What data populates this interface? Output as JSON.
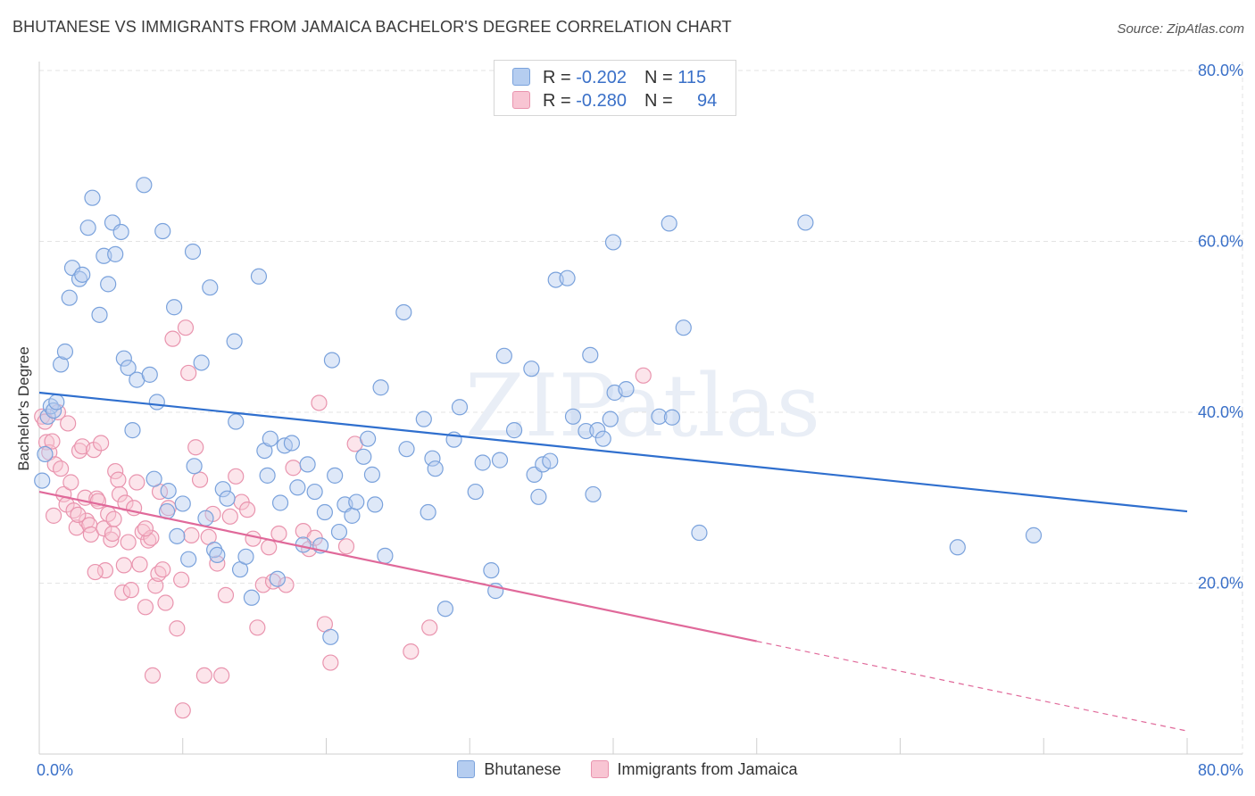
{
  "header": {
    "title": "BHUTANESE VS IMMIGRANTS FROM JAMAICA BACHELOR'S DEGREE CORRELATION CHART",
    "source": "Source: ZipAtlas.com"
  },
  "legend_top": {
    "row1": {
      "r_label": "R = ",
      "r_value": "-0.202",
      "n_label": "N = ",
      "n_value": "115"
    },
    "row2": {
      "r_label": "R = ",
      "r_value": "-0.280",
      "n_label": "N = ",
      "n_value": "94"
    }
  },
  "legend_bottom": {
    "item1": "Bhutanese",
    "item2": "Immigrants from Jamaica"
  },
  "colors": {
    "blue_fill": "#b5cdf0",
    "blue_stroke": "#7aa2dc",
    "blue_line": "#2f6fce",
    "pink_fill": "#f8c5d3",
    "pink_stroke": "#e994ae",
    "pink_line": "#e0699a",
    "tick_label": "#3a70c8",
    "grid": "#e3e3e3"
  },
  "chart_data": {
    "type": "scatter",
    "title": "BHUTANESE VS IMMIGRANTS FROM JAMAICA BACHELOR'S DEGREE CORRELATION CHART",
    "xlabel": "",
    "ylabel": "Bachelor's Degree",
    "xlim": [
      0,
      80
    ],
    "ylim": [
      0,
      80
    ],
    "x_ticks": [
      "0.0%",
      "80.0%"
    ],
    "y_ticks": [
      {
        "v": 20,
        "label": "20.0%"
      },
      {
        "v": 40,
        "label": "40.0%"
      },
      {
        "v": 60,
        "label": "60.0%"
      },
      {
        "v": 80,
        "label": "80.0%"
      }
    ],
    "grid": true,
    "legend": "top-center",
    "watermark": "ZIPatlas",
    "series": [
      {
        "name": "Bhutanese",
        "r": -0.202,
        "n": 115,
        "trend": {
          "x0": 0,
          "y0": 42.3,
          "x1": 80,
          "y1": 28.4
        },
        "points": [
          [
            0.2,
            32.0
          ],
          [
            0.4,
            35.1
          ],
          [
            0.6,
            39.5
          ],
          [
            0.8,
            40.7
          ],
          [
            1.0,
            40.2
          ],
          [
            1.2,
            41.2
          ],
          [
            1.5,
            45.6
          ],
          [
            1.8,
            47.1
          ],
          [
            2.1,
            53.4
          ],
          [
            2.3,
            56.9
          ],
          [
            2.8,
            55.6
          ],
          [
            3.0,
            56.1
          ],
          [
            3.7,
            65.1
          ],
          [
            3.4,
            61.6
          ],
          [
            4.2,
            51.4
          ],
          [
            4.5,
            58.3
          ],
          [
            4.8,
            55.0
          ],
          [
            5.1,
            62.2
          ],
          [
            5.3,
            58.5
          ],
          [
            5.7,
            61.1
          ],
          [
            5.9,
            46.3
          ],
          [
            6.2,
            45.2
          ],
          [
            6.5,
            37.9
          ],
          [
            6.8,
            43.8
          ],
          [
            7.3,
            66.6
          ],
          [
            7.7,
            44.4
          ],
          [
            8.0,
            32.2
          ],
          [
            8.2,
            41.2
          ],
          [
            8.6,
            61.2
          ],
          [
            8.9,
            28.4
          ],
          [
            9.0,
            30.8
          ],
          [
            9.4,
            52.3
          ],
          [
            9.6,
            25.5
          ],
          [
            10.0,
            29.3
          ],
          [
            10.4,
            22.8
          ],
          [
            10.7,
            58.8
          ],
          [
            10.8,
            33.7
          ],
          [
            11.3,
            45.8
          ],
          [
            11.6,
            27.6
          ],
          [
            11.9,
            54.6
          ],
          [
            12.2,
            23.9
          ],
          [
            12.4,
            23.3
          ],
          [
            12.8,
            31.0
          ],
          [
            13.1,
            29.9
          ],
          [
            13.6,
            48.3
          ],
          [
            13.7,
            38.9
          ],
          [
            14.0,
            21.6
          ],
          [
            14.4,
            23.1
          ],
          [
            14.8,
            18.3
          ],
          [
            15.3,
            55.9
          ],
          [
            15.7,
            35.5
          ],
          [
            15.9,
            32.6
          ],
          [
            16.1,
            36.9
          ],
          [
            16.6,
            20.5
          ],
          [
            16.8,
            29.4
          ],
          [
            17.1,
            36.1
          ],
          [
            17.6,
            36.4
          ],
          [
            18.0,
            31.2
          ],
          [
            18.4,
            24.5
          ],
          [
            18.7,
            33.9
          ],
          [
            19.2,
            30.7
          ],
          [
            19.6,
            24.4
          ],
          [
            19.9,
            28.3
          ],
          [
            20.4,
            46.1
          ],
          [
            20.6,
            32.6
          ],
          [
            20.9,
            26.0
          ],
          [
            21.3,
            29.2
          ],
          [
            21.8,
            27.9
          ],
          [
            22.1,
            29.5
          ],
          [
            22.6,
            34.8
          ],
          [
            22.9,
            36.9
          ],
          [
            23.2,
            32.7
          ],
          [
            23.4,
            29.2
          ],
          [
            23.8,
            42.9
          ],
          [
            24.1,
            23.2
          ],
          [
            25.4,
            51.7
          ],
          [
            25.6,
            35.7
          ],
          [
            26.8,
            39.2
          ],
          [
            27.1,
            28.3
          ],
          [
            27.4,
            34.6
          ],
          [
            27.6,
            33.4
          ],
          [
            28.9,
            36.8
          ],
          [
            29.3,
            40.6
          ],
          [
            30.4,
            30.7
          ],
          [
            30.9,
            34.1
          ],
          [
            31.5,
            21.5
          ],
          [
            31.8,
            19.1
          ],
          [
            32.1,
            34.4
          ],
          [
            32.4,
            46.6
          ],
          [
            33.1,
            37.9
          ],
          [
            34.3,
            45.1
          ],
          [
            34.5,
            32.7
          ],
          [
            34.8,
            30.1
          ],
          [
            35.1,
            33.9
          ],
          [
            35.6,
            34.3
          ],
          [
            36.0,
            55.5
          ],
          [
            36.8,
            55.7
          ],
          [
            37.2,
            39.5
          ],
          [
            38.1,
            37.8
          ],
          [
            38.4,
            46.7
          ],
          [
            38.6,
            30.4
          ],
          [
            38.9,
            37.9
          ],
          [
            39.3,
            36.9
          ],
          [
            39.8,
            39.2
          ],
          [
            40.1,
            42.3
          ],
          [
            40.0,
            59.9
          ],
          [
            40.9,
            42.7
          ],
          [
            43.2,
            39.5
          ],
          [
            43.9,
            62.1
          ],
          [
            44.1,
            39.4
          ],
          [
            44.9,
            49.9
          ],
          [
            46.0,
            25.9
          ],
          [
            53.4,
            62.2
          ],
          [
            64.0,
            24.2
          ],
          [
            69.3,
            25.6
          ],
          [
            20.3,
            13.7
          ],
          [
            28.3,
            17.0
          ]
        ]
      },
      {
        "name": "Immigrants from Jamaica",
        "r": -0.28,
        "n": 94,
        "trend": {
          "x0": 0,
          "y0": 30.7,
          "x1": 50.0,
          "y1": 13.2
        },
        "trend_dashed": {
          "x0": 50.0,
          "y0": 13.2,
          "x1": 80,
          "y1": 2.7
        },
        "points": [
          [
            0.2,
            39.5
          ],
          [
            0.4,
            38.9
          ],
          [
            0.5,
            36.5
          ],
          [
            0.7,
            35.3
          ],
          [
            0.9,
            36.6
          ],
          [
            1.1,
            33.9
          ],
          [
            1.3,
            40.0
          ],
          [
            1.5,
            33.4
          ],
          [
            1.7,
            30.4
          ],
          [
            1.9,
            29.2
          ],
          [
            2.0,
            38.7
          ],
          [
            2.2,
            31.8
          ],
          [
            2.4,
            28.5
          ],
          [
            2.6,
            26.5
          ],
          [
            2.8,
            35.5
          ],
          [
            3.0,
            36.0
          ],
          [
            3.2,
            30.0
          ],
          [
            3.3,
            27.3
          ],
          [
            3.5,
            26.8
          ],
          [
            3.6,
            25.7
          ],
          [
            3.8,
            35.6
          ],
          [
            4.0,
            29.9
          ],
          [
            4.1,
            29.6
          ],
          [
            4.3,
            36.4
          ],
          [
            4.5,
            26.4
          ],
          [
            4.6,
            21.5
          ],
          [
            4.8,
            28.1
          ],
          [
            5.0,
            25.1
          ],
          [
            5.1,
            25.8
          ],
          [
            5.2,
            27.5
          ],
          [
            5.3,
            33.1
          ],
          [
            5.5,
            32.1
          ],
          [
            5.6,
            30.4
          ],
          [
            5.8,
            18.9
          ],
          [
            5.9,
            22.1
          ],
          [
            6.0,
            29.4
          ],
          [
            6.2,
            24.8
          ],
          [
            6.4,
            19.2
          ],
          [
            6.6,
            28.8
          ],
          [
            6.8,
            31.8
          ],
          [
            7.0,
            22.2
          ],
          [
            7.2,
            26.0
          ],
          [
            7.4,
            17.2
          ],
          [
            7.6,
            25.0
          ],
          [
            7.8,
            25.3
          ],
          [
            7.9,
            9.2
          ],
          [
            8.1,
            19.7
          ],
          [
            8.3,
            21.1
          ],
          [
            8.4,
            30.7
          ],
          [
            8.6,
            21.6
          ],
          [
            8.8,
            17.7
          ],
          [
            9.0,
            28.8
          ],
          [
            9.3,
            48.6
          ],
          [
            9.6,
            14.7
          ],
          [
            9.9,
            20.4
          ],
          [
            10.0,
            5.1
          ],
          [
            10.2,
            49.9
          ],
          [
            10.4,
            44.6
          ],
          [
            10.6,
            25.6
          ],
          [
            10.9,
            35.9
          ],
          [
            11.2,
            32.1
          ],
          [
            11.5,
            9.2
          ],
          [
            11.8,
            25.4
          ],
          [
            12.1,
            28.1
          ],
          [
            12.4,
            22.3
          ],
          [
            12.7,
            9.2
          ],
          [
            13.0,
            18.6
          ],
          [
            13.3,
            27.8
          ],
          [
            13.7,
            32.5
          ],
          [
            14.1,
            29.5
          ],
          [
            14.5,
            28.6
          ],
          [
            14.9,
            25.2
          ],
          [
            15.2,
            14.8
          ],
          [
            15.6,
            19.8
          ],
          [
            16.0,
            24.2
          ],
          [
            16.3,
            20.2
          ],
          [
            16.7,
            25.8
          ],
          [
            17.2,
            19.8
          ],
          [
            17.7,
            33.5
          ],
          [
            18.4,
            26.1
          ],
          [
            18.8,
            24.0
          ],
          [
            19.2,
            25.3
          ],
          [
            19.5,
            41.1
          ],
          [
            19.9,
            15.2
          ],
          [
            20.3,
            10.7
          ],
          [
            21.4,
            24.3
          ],
          [
            22.0,
            36.3
          ],
          [
            25.9,
            12.0
          ],
          [
            27.2,
            14.8
          ],
          [
            42.1,
            44.3
          ],
          [
            1.0,
            27.9
          ],
          [
            2.7,
            28.0
          ],
          [
            3.9,
            21.3
          ],
          [
            7.4,
            26.4
          ]
        ]
      }
    ]
  }
}
